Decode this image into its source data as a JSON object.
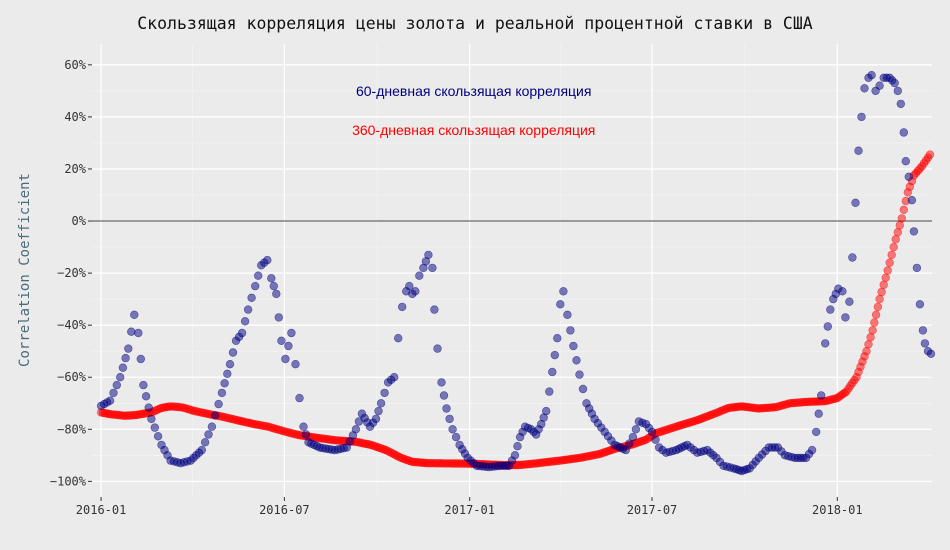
{
  "chart_data": {
    "type": "scatter",
    "title": "Скользящая корреляция цены золота и реальной процентной ставки в США",
    "xlabel": "",
    "ylabel": "Correlation Coefficient",
    "x_range": [
      "2015-12-23",
      "2018-04-05"
    ],
    "ylim": [
      -1.06,
      0.68
    ],
    "x_ticks": [
      "2016-01",
      "2016-07",
      "2017-01",
      "2017-07",
      "2018-01"
    ],
    "y_ticks": [
      -1.0,
      -0.8,
      -0.6,
      -0.4,
      -0.2,
      0.0,
      0.2,
      0.4,
      0.6
    ],
    "y_tick_labels": [
      "−100%",
      "−80%",
      "−60%",
      "−40%",
      "−20%",
      "0%",
      "20%",
      "40%",
      "60%"
    ],
    "grid": true,
    "zero_line": true,
    "series": [
      {
        "name": "60-дневная скользящая корреляция",
        "color": "#00007f",
        "points": [
          [
            "2016-01-01",
            -0.71
          ],
          [
            "2016-01-10",
            -0.69
          ],
          [
            "2016-01-20",
            -0.6
          ],
          [
            "2016-01-28",
            -0.49
          ],
          [
            "2016-02-03",
            -0.36
          ],
          [
            "2016-02-07",
            -0.43
          ],
          [
            "2016-02-12",
            -0.63
          ],
          [
            "2016-02-20",
            -0.76
          ],
          [
            "2016-03-01",
            -0.86
          ],
          [
            "2016-03-10",
            -0.92
          ],
          [
            "2016-03-20",
            -0.93
          ],
          [
            "2016-03-30",
            -0.92
          ],
          [
            "2016-04-10",
            -0.88
          ],
          [
            "2016-04-20",
            -0.79
          ],
          [
            "2016-04-30",
            -0.66
          ],
          [
            "2016-05-08",
            -0.55
          ],
          [
            "2016-05-14",
            -0.46
          ],
          [
            "2016-05-20",
            -0.43
          ],
          [
            "2016-05-26",
            -0.34
          ],
          [
            "2016-06-02",
            -0.25
          ],
          [
            "2016-06-08",
            -0.17
          ],
          [
            "2016-06-14",
            -0.15
          ],
          [
            "2016-06-18",
            -0.22
          ],
          [
            "2016-06-23",
            -0.28
          ],
          [
            "2016-06-28",
            -0.46
          ],
          [
            "2016-07-02",
            -0.53
          ],
          [
            "2016-07-05",
            -0.48
          ],
          [
            "2016-07-08",
            -0.43
          ],
          [
            "2016-07-12",
            -0.55
          ],
          [
            "2016-07-16",
            -0.68
          ],
          [
            "2016-07-20",
            -0.79
          ],
          [
            "2016-07-25",
            -0.85
          ],
          [
            "2016-08-05",
            -0.87
          ],
          [
            "2016-08-20",
            -0.88
          ],
          [
            "2016-09-01",
            -0.87
          ],
          [
            "2016-09-10",
            -0.8
          ],
          [
            "2016-09-16",
            -0.74
          ],
          [
            "2016-09-24",
            -0.79
          ],
          [
            "2016-09-30",
            -0.76
          ],
          [
            "2016-10-05",
            -0.7
          ],
          [
            "2016-10-12",
            -0.62
          ],
          [
            "2016-10-18",
            -0.6
          ],
          [
            "2016-10-22",
            -0.45
          ],
          [
            "2016-10-26",
            -0.33
          ],
          [
            "2016-10-30",
            -0.27
          ],
          [
            "2016-11-02",
            -0.25
          ],
          [
            "2016-11-05",
            -0.28
          ],
          [
            "2016-11-08",
            -0.27
          ],
          [
            "2016-11-12",
            -0.21
          ],
          [
            "2016-11-16",
            -0.18
          ],
          [
            "2016-11-21",
            -0.13
          ],
          [
            "2016-11-25",
            -0.18
          ],
          [
            "2016-11-27",
            -0.34
          ],
          [
            "2016-11-30",
            -0.49
          ],
          [
            "2016-12-04",
            -0.62
          ],
          [
            "2016-12-09",
            -0.72
          ],
          [
            "2016-12-15",
            -0.8
          ],
          [
            "2016-12-22",
            -0.86
          ],
          [
            "2016-12-30",
            -0.91
          ],
          [
            "2017-01-08",
            -0.94
          ],
          [
            "2017-01-20",
            -0.945
          ],
          [
            "2017-02-01",
            -0.94
          ],
          [
            "2017-02-09",
            -0.94
          ],
          [
            "2017-02-15",
            -0.9
          ],
          [
            "2017-02-20",
            -0.83
          ],
          [
            "2017-02-25",
            -0.79
          ],
          [
            "2017-03-03",
            -0.8
          ],
          [
            "2017-03-08",
            -0.82
          ],
          [
            "2017-03-13",
            -0.78
          ],
          [
            "2017-03-18",
            -0.73
          ],
          [
            "2017-03-24",
            -0.58
          ],
          [
            "2017-03-29",
            -0.45
          ],
          [
            "2017-04-01",
            -0.32
          ],
          [
            "2017-04-04",
            -0.27
          ],
          [
            "2017-04-08",
            -0.36
          ],
          [
            "2017-04-14",
            -0.48
          ],
          [
            "2017-04-20",
            -0.59
          ],
          [
            "2017-04-27",
            -0.7
          ],
          [
            "2017-05-05",
            -0.76
          ],
          [
            "2017-05-15",
            -0.81
          ],
          [
            "2017-05-25",
            -0.86
          ],
          [
            "2017-06-05",
            -0.88
          ],
          [
            "2017-06-12",
            -0.83
          ],
          [
            "2017-06-18",
            -0.77
          ],
          [
            "2017-06-25",
            -0.78
          ],
          [
            "2017-07-01",
            -0.81
          ],
          [
            "2017-07-08",
            -0.87
          ],
          [
            "2017-07-15",
            -0.89
          ],
          [
            "2017-07-25",
            -0.88
          ],
          [
            "2017-08-05",
            -0.86
          ],
          [
            "2017-08-15",
            -0.89
          ],
          [
            "2017-08-25",
            -0.88
          ],
          [
            "2017-09-03",
            -0.91
          ],
          [
            "2017-09-10",
            -0.94
          ],
          [
            "2017-09-20",
            -0.95
          ],
          [
            "2017-09-28",
            -0.96
          ],
          [
            "2017-10-06",
            -0.95
          ],
          [
            "2017-10-15",
            -0.91
          ],
          [
            "2017-10-25",
            -0.87
          ],
          [
            "2017-11-03",
            -0.87
          ],
          [
            "2017-11-10",
            -0.9
          ],
          [
            "2017-11-20",
            -0.91
          ],
          [
            "2017-12-01",
            -0.91
          ],
          [
            "2017-12-07",
            -0.88
          ],
          [
            "2017-12-11",
            -0.81
          ],
          [
            "2017-12-16",
            -0.67
          ],
          [
            "2017-12-20",
            -0.47
          ],
          [
            "2017-12-25",
            -0.34
          ],
          [
            "2017-12-28",
            -0.3
          ],
          [
            "2018-01-02",
            -0.26
          ],
          [
            "2018-01-06",
            -0.27
          ],
          [
            "2018-01-09",
            -0.37
          ],
          [
            "2018-01-13",
            -0.31
          ],
          [
            "2018-01-16",
            -0.14
          ],
          [
            "2018-01-19",
            0.07
          ],
          [
            "2018-01-22",
            0.27
          ],
          [
            "2018-01-25",
            0.4
          ],
          [
            "2018-01-28",
            0.51
          ],
          [
            "2018-02-01",
            0.55
          ],
          [
            "2018-02-04",
            0.56
          ],
          [
            "2018-02-08",
            0.5
          ],
          [
            "2018-02-12",
            0.52
          ],
          [
            "2018-02-16",
            0.55
          ],
          [
            "2018-02-22",
            0.55
          ],
          [
            "2018-02-27",
            0.53
          ],
          [
            "2018-03-02",
            0.5
          ],
          [
            "2018-03-05",
            0.45
          ],
          [
            "2018-03-08",
            0.34
          ],
          [
            "2018-03-10",
            0.23
          ],
          [
            "2018-03-13",
            0.17
          ],
          [
            "2018-03-16",
            0.08
          ],
          [
            "2018-03-18",
            -0.04
          ],
          [
            "2018-03-21",
            -0.18
          ],
          [
            "2018-03-24",
            -0.32
          ],
          [
            "2018-03-27",
            -0.42
          ],
          [
            "2018-03-29",
            -0.47
          ],
          [
            "2018-04-01",
            -0.5
          ],
          [
            "2018-04-04",
            -0.51
          ]
        ]
      },
      {
        "name": "360-дневная скользящая корреляция",
        "color": "#ff0000",
        "points": [
          [
            "2016-01-01",
            -0.735
          ],
          [
            "2016-01-10",
            -0.742
          ],
          [
            "2016-01-25",
            -0.748
          ],
          [
            "2016-02-05",
            -0.745
          ],
          [
            "2016-02-20",
            -0.735
          ],
          [
            "2016-03-01",
            -0.718
          ],
          [
            "2016-03-10",
            -0.712
          ],
          [
            "2016-03-22",
            -0.716
          ],
          [
            "2016-04-01",
            -0.728
          ],
          [
            "2016-04-15",
            -0.74
          ],
          [
            "2016-05-01",
            -0.752
          ],
          [
            "2016-05-15",
            -0.765
          ],
          [
            "2016-06-01",
            -0.78
          ],
          [
            "2016-06-15",
            -0.79
          ],
          [
            "2016-07-01",
            -0.808
          ],
          [
            "2016-07-15",
            -0.822
          ],
          [
            "2016-08-01",
            -0.832
          ],
          [
            "2016-08-20",
            -0.842
          ],
          [
            "2016-09-10",
            -0.848
          ],
          [
            "2016-09-25",
            -0.86
          ],
          [
            "2016-10-10",
            -0.88
          ],
          [
            "2016-10-25",
            -0.91
          ],
          [
            "2016-11-05",
            -0.925
          ],
          [
            "2016-11-20",
            -0.93
          ],
          [
            "2016-12-10",
            -0.931
          ],
          [
            "2017-01-01",
            -0.932
          ],
          [
            "2017-01-20",
            -0.935
          ],
          [
            "2017-02-05",
            -0.938
          ],
          [
            "2017-02-20",
            -0.937
          ],
          [
            "2017-03-10",
            -0.93
          ],
          [
            "2017-04-01",
            -0.92
          ],
          [
            "2017-04-20",
            -0.91
          ],
          [
            "2017-05-10",
            -0.895
          ],
          [
            "2017-05-25",
            -0.875
          ],
          [
            "2017-06-10",
            -0.86
          ],
          [
            "2017-06-25",
            -0.84
          ],
          [
            "2017-07-05",
            -0.815
          ],
          [
            "2017-07-25",
            -0.79
          ],
          [
            "2017-08-15",
            -0.765
          ],
          [
            "2017-09-01",
            -0.74
          ],
          [
            "2017-09-15",
            -0.718
          ],
          [
            "2017-09-28",
            -0.712
          ],
          [
            "2017-10-15",
            -0.72
          ],
          [
            "2017-11-01",
            -0.715
          ],
          [
            "2017-11-15",
            -0.7
          ],
          [
            "2017-12-01",
            -0.695
          ],
          [
            "2017-12-20",
            -0.692
          ],
          [
            "2018-01-01",
            -0.68
          ],
          [
            "2018-01-10",
            -0.655
          ],
          [
            "2018-01-20",
            -0.6
          ],
          [
            "2018-01-30",
            -0.5
          ],
          [
            "2018-02-05",
            -0.42
          ],
          [
            "2018-02-12",
            -0.3
          ],
          [
            "2018-02-20",
            -0.19
          ],
          [
            "2018-02-28",
            -0.07
          ],
          [
            "2018-03-06",
            0.01
          ],
          [
            "2018-03-12",
            0.11
          ],
          [
            "2018-03-18",
            0.175
          ],
          [
            "2018-03-26",
            0.21
          ],
          [
            "2018-04-03",
            0.255
          ]
        ]
      }
    ],
    "annotations": [
      {
        "text": "60-дневная скользящая корреляция",
        "color": "#00007f",
        "x": "2017-01-05",
        "y": 0.5
      },
      {
        "text": "360-дневная скользящая корреляция",
        "color": "#ff0000",
        "x": "2017-01-05",
        "y": 0.35
      }
    ]
  }
}
